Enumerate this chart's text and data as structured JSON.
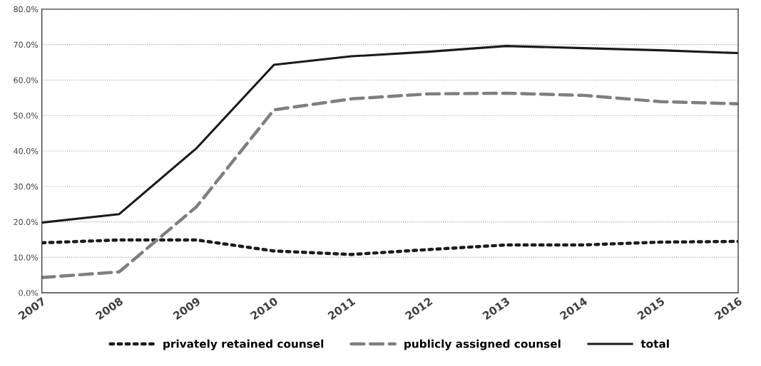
{
  "chart_data": {
    "type": "line",
    "categories": [
      "2007",
      "2008",
      "2009",
      "2010",
      "2011",
      "2012",
      "2013",
      "2014",
      "2015",
      "2016"
    ],
    "series": [
      {
        "name": "privately retained counsel",
        "color": "#1a1a1a",
        "line_style": "dotted",
        "values": [
          14.1,
          14.9,
          14.9,
          11.8,
          10.8,
          12.2,
          13.5,
          13.5,
          14.3,
          14.5
        ]
      },
      {
        "name": "publicly assigned counsel",
        "color": "#7f7f7f",
        "line_style": "dashed",
        "values": [
          4.3,
          5.9,
          24.3,
          51.6,
          54.7,
          56.1,
          56.3,
          55.7,
          53.9,
          53.3
        ]
      },
      {
        "name": "total",
        "color": "#1a1a1a",
        "line_style": "solid",
        "values": [
          19.8,
          22.2,
          40.8,
          64.3,
          66.7,
          68.0,
          69.6,
          69.0,
          68.4,
          67.6
        ]
      }
    ],
    "ylim": [
      0,
      80
    ],
    "yticks": [
      {
        "value": 0,
        "label": "0.0%"
      },
      {
        "value": 10,
        "label": "10.0%"
      },
      {
        "value": 20,
        "label": "20.0%"
      },
      {
        "value": 30,
        "label": "30.0%"
      },
      {
        "value": 40,
        "label": "40.0%"
      },
      {
        "value": 50,
        "label": "50.0%"
      },
      {
        "value": 60,
        "label": "60.0%"
      },
      {
        "value": 70,
        "label": "70.0%"
      },
      {
        "value": 80,
        "label": "80.0%"
      }
    ],
    "grid": "y",
    "legend": "bottom",
    "marker": "none"
  }
}
